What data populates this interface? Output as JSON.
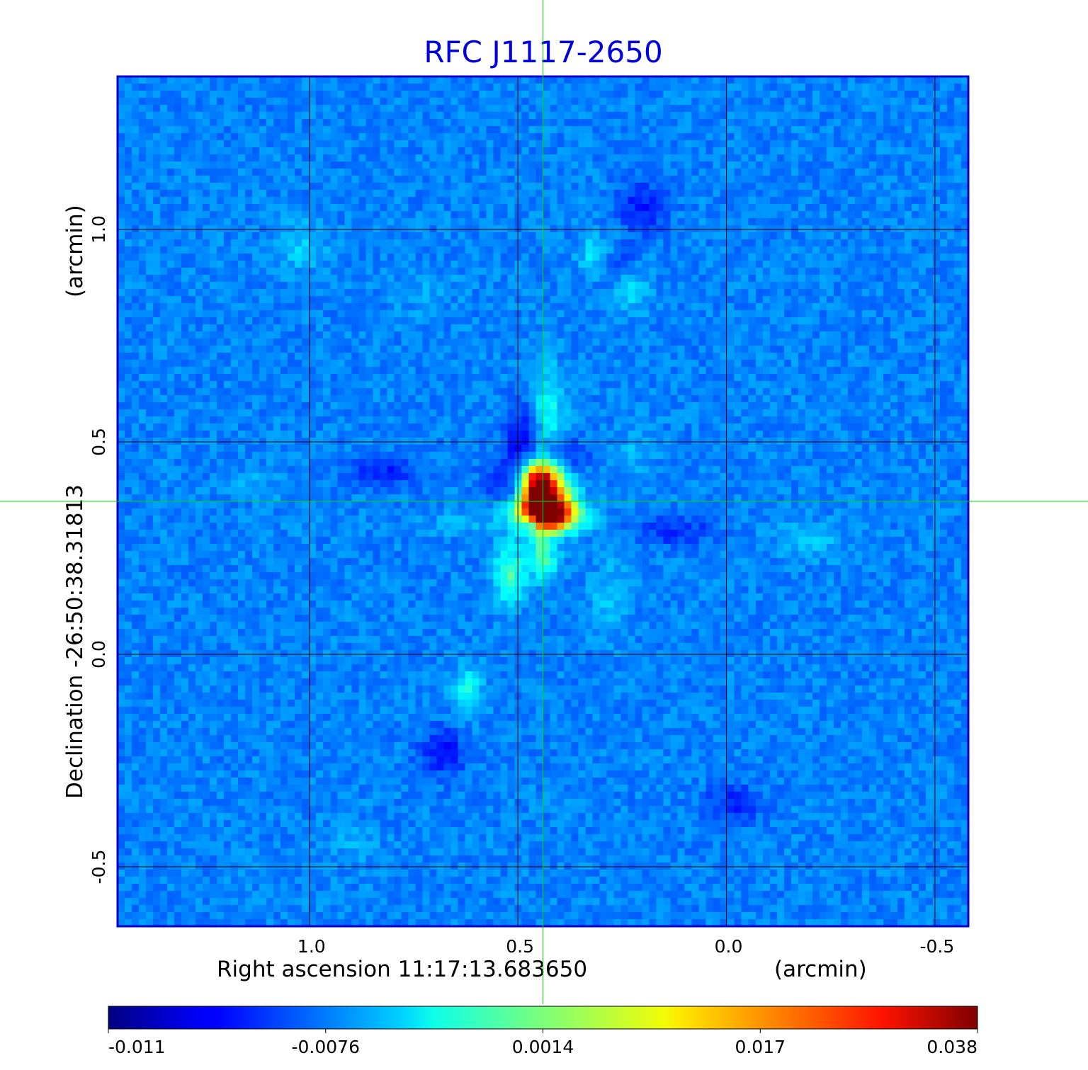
{
  "chart_data": {
    "type": "heatmap",
    "title": "RFC J1117-2650",
    "xlabel": "Right ascension  11:17:13.683650",
    "xlabel_unit": "(arcmin)",
    "ylabel": "Declination  -26:50:38.31813",
    "ylabel_unit": "(arcmin)",
    "x_reversed": true,
    "xlim": [
      1.46,
      -0.58
    ],
    "ylim": [
      -0.64,
      1.36
    ],
    "x_ticks": [
      1.0,
      0.5,
      0.0,
      -0.5
    ],
    "x_tick_labels": [
      "1.0",
      "0.5",
      "0.0",
      "-0.5"
    ],
    "y_ticks": [
      1.0,
      0.5,
      0.0,
      -0.5
    ],
    "y_tick_labels": [
      "1.0",
      "0.5",
      "0.0",
      "-0.5"
    ],
    "grid": true,
    "crosshair": {
      "x": 0.44,
      "y": 0.36,
      "color": "#00dd00"
    },
    "colormap": "jet",
    "colorbar": {
      "min": -0.011,
      "max": 0.038,
      "tick_values": [
        -0.011,
        -0.0076,
        0.0014,
        0.017,
        0.038
      ],
      "tick_labels": [
        "-0.011",
        "-0.0076",
        "0.0014",
        "0.017",
        "0.038"
      ]
    },
    "features": [
      {
        "x": 0.45,
        "y": 0.39,
        "sx": 0.03,
        "sy": 0.05,
        "value": 0.038
      },
      {
        "x": 0.43,
        "y": 0.33,
        "sx": 0.05,
        "sy": 0.025,
        "value": 0.03
      },
      {
        "x": 0.41,
        "y": 0.37,
        "sx": 0.035,
        "sy": 0.04,
        "value": 0.016
      },
      {
        "x": 0.47,
        "y": 0.31,
        "sx": 0.015,
        "sy": 0.015,
        "value": -0.011
      },
      {
        "x": 0.44,
        "y": 0.23,
        "sx": 0.025,
        "sy": 0.04,
        "value": 0.011
      },
      {
        "x": 0.52,
        "y": 0.19,
        "sx": 0.025,
        "sy": 0.05,
        "value": 0.011
      },
      {
        "x": 0.43,
        "y": 0.57,
        "sx": 0.03,
        "sy": 0.08,
        "value": 0.008
      },
      {
        "x": 0.48,
        "y": 0.52,
        "sx": 0.03,
        "sy": 0.05,
        "value": -0.005
      },
      {
        "x": 0.43,
        "y": 0.47,
        "sx": 0.06,
        "sy": 0.025,
        "value": -0.005
      },
      {
        "x": 0.53,
        "y": 0.41,
        "sx": 0.035,
        "sy": 0.03,
        "value": -0.004
      },
      {
        "x": 0.39,
        "y": 0.31,
        "sx": 0.05,
        "sy": 0.02,
        "value": 0.005
      },
      {
        "x": 0.62,
        "y": -0.09,
        "sx": 0.025,
        "sy": 0.04,
        "value": 0.008
      },
      {
        "x": 0.31,
        "y": 0.94,
        "sx": 0.03,
        "sy": 0.03,
        "value": 0.007
      },
      {
        "x": 0.23,
        "y": 0.86,
        "sx": 0.03,
        "sy": 0.04,
        "value": 0.006
      },
      {
        "x": 1.02,
        "y": 0.96,
        "sx": 0.04,
        "sy": 0.04,
        "value": 0.005
      },
      {
        "x": 0.28,
        "y": 0.13,
        "sx": 0.03,
        "sy": 0.06,
        "value": 0.005
      },
      {
        "x": 0.22,
        "y": 0.48,
        "sx": 0.03,
        "sy": 0.04,
        "value": 0.004
      },
      {
        "x": 0.2,
        "y": 1.05,
        "sx": 0.04,
        "sy": 0.04,
        "value": -0.004
      },
      {
        "x": 0.62,
        "y": 0.31,
        "sx": 0.06,
        "sy": 0.02,
        "value": 0.004
      },
      {
        "x": 0.68,
        "y": -0.23,
        "sx": 0.04,
        "sy": 0.04,
        "value": -0.004
      },
      {
        "x": -0.2,
        "y": 0.27,
        "sx": 0.06,
        "sy": 0.03,
        "value": 0.004
      },
      {
        "x": 0.12,
        "y": 0.29,
        "sx": 0.06,
        "sy": 0.025,
        "value": -0.003
      },
      {
        "x": 0.82,
        "y": 0.43,
        "sx": 0.06,
        "sy": 0.025,
        "value": -0.003
      },
      {
        "x": 1.12,
        "y": 0.4,
        "sx": 0.06,
        "sy": 0.025,
        "value": 0.003
      },
      {
        "x": -0.02,
        "y": -0.35,
        "sx": 0.05,
        "sy": 0.03,
        "value": -0.003
      },
      {
        "x": 0.9,
        "y": -0.45,
        "sx": 0.05,
        "sy": 0.04,
        "value": 0.003
      },
      {
        "x": 0.72,
        "y": 0.85,
        "sx": 0.05,
        "sy": 0.04,
        "value": 0.003
      },
      {
        "x": 0.26,
        "y": 0.92,
        "sx": 0.03,
        "sy": 0.03,
        "value": -0.003
      }
    ]
  }
}
